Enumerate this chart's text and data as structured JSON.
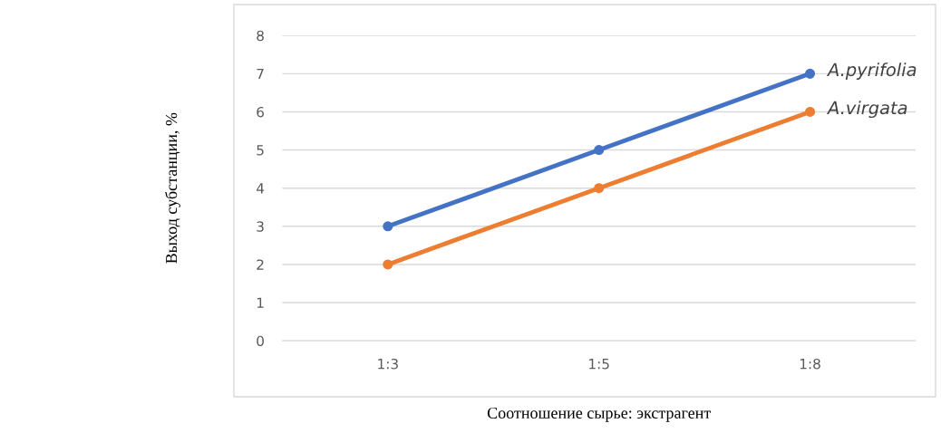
{
  "chart_data": {
    "type": "line",
    "xlabel": "Соотношение сырье: экстрагент",
    "ylabel": "Выход субстанции, %",
    "categories": [
      "1:3",
      "1:5",
      "1:8"
    ],
    "series": [
      {
        "name": "A.pyrifolia",
        "color": "#4472c4",
        "values": [
          3,
          5,
          7
        ]
      },
      {
        "name": "A.virgata",
        "color": "#ed7d31",
        "values": [
          2,
          4,
          6
        ]
      }
    ],
    "ylim": [
      0,
      8
    ],
    "yticks": [
      0,
      1,
      2,
      3,
      4,
      5,
      6,
      7,
      8
    ],
    "grid": "y",
    "legend": false,
    "marker": "circle",
    "line_style": "solid"
  }
}
